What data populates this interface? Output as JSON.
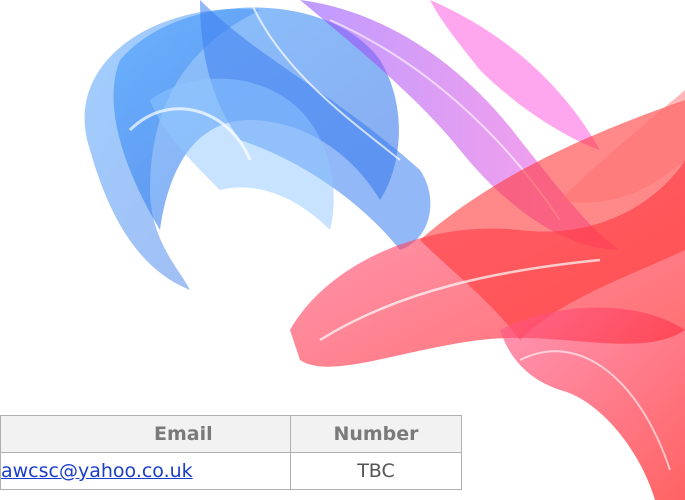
{
  "table": {
    "headers": [
      "Email",
      "Number"
    ],
    "rows": [
      [
        "awcsc@yahoo.co.uk",
        "TBC"
      ]
    ]
  }
}
